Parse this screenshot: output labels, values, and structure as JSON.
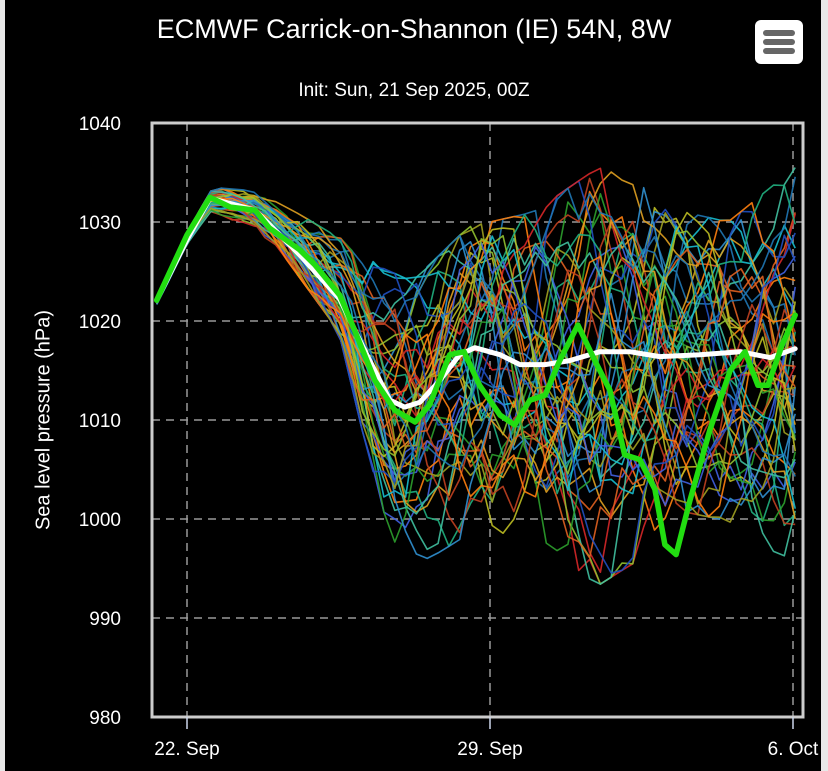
{
  "header": {
    "title": "ECMWF Carrick-on-Shannon (IE) 54N, 8W",
    "subtitle": "Init: Sun, 21 Sep 2025, 00Z",
    "menu_icon": "hamburger-menu-icon"
  },
  "colors": {
    "background": "#000000",
    "frame": "#cccccc",
    "grid": "#999999",
    "control": "#22dd11",
    "mean": "#ffffff",
    "members": [
      "#1f77b4",
      "#ff7f0e",
      "#2ca02c",
      "#d62728",
      "#17becf",
      "#bcbd22",
      "#e0a020",
      "#4060e0",
      "#20b080",
      "#c04020",
      "#3090d0",
      "#90c030",
      "#e06020",
      "#2050c0",
      "#40c0a0",
      "#a0a020"
    ]
  },
  "chart_data": {
    "type": "line",
    "title": "ECMWF Carrick-on-Shannon (IE) 54N, 8W",
    "subtitle": "Init: Sun, 21 Sep 2025, 00Z",
    "xlabel": "",
    "ylabel": "Sea level pressure (hPa)",
    "ylim": [
      980,
      1040
    ],
    "yticks": [
      980,
      990,
      1000,
      1010,
      1020,
      1030,
      1040
    ],
    "xlim_days_from_22sep": [
      -0.7,
      14.3
    ],
    "xticks": [
      {
        "label": "22. Sep",
        "day": 0
      },
      {
        "label": "29. Sep",
        "day": 7
      },
      {
        "label": "6. Oct",
        "day": 14
      }
    ],
    "grid": true,
    "x_unit": "days since 22 Sep 2025 00Z",
    "series": [
      {
        "name": "Control run",
        "style": "thick-green",
        "x": [
          -0.7,
          0,
          0.53,
          1.0,
          1.57,
          1.9,
          2.6,
          2.95,
          3.53,
          3.88,
          4.34,
          4.8,
          5.27,
          5.6,
          6.07,
          6.4,
          6.76,
          7.23,
          7.57,
          7.92,
          8.27,
          8.61,
          9.03,
          9.42,
          9.77,
          10.11,
          10.46,
          10.81,
          11.04,
          11.3,
          11.62,
          12.08,
          12.55,
          12.89,
          13.19,
          13.42,
          13.75,
          14.05
        ],
        "y": [
          1022.1,
          1028.7,
          1032.5,
          1031.5,
          1031.2,
          1029.4,
          1027.2,
          1025.7,
          1022.6,
          1019.0,
          1014.0,
          1011.0,
          1009.8,
          1011.5,
          1016.6,
          1016.9,
          1013.5,
          1010.5,
          1009.5,
          1012.0,
          1012.5,
          1016.0,
          1019.6,
          1016.0,
          1013.0,
          1006.5,
          1006.0,
          1003.0,
          997.4,
          996.4,
          1001.9,
          1009.0,
          1015.0,
          1016.9,
          1013.5,
          1013.5,
          1017.6,
          1020.6
        ]
      },
      {
        "name": "Ensemble mean",
        "style": "thick-white",
        "x": [
          -0.7,
          0,
          0.53,
          1.57,
          2.6,
          3.53,
          4.22,
          4.69,
          5.03,
          5.38,
          5.84,
          6.3,
          6.65,
          7.23,
          7.69,
          8.27,
          8.84,
          9.54,
          10.23,
          10.92,
          11.85,
          12.78,
          13.47,
          14.05
        ],
        "y": [
          1022.1,
          1028.2,
          1032.4,
          1031.2,
          1026.7,
          1022.2,
          1016.0,
          1012.0,
          1011.3,
          1011.8,
          1014.0,
          1016.6,
          1017.3,
          1016.6,
          1015.6,
          1015.6,
          1016.0,
          1016.9,
          1016.9,
          1016.4,
          1016.6,
          1016.9,
          1016.3,
          1017.2
        ]
      }
    ],
    "ensemble": {
      "name": "Ensemble members",
      "count": 50,
      "x_step_days": 0.25,
      "note": "spaghetti of perturbed members; spread grows from ~1 hPa at day 0 to ~±18 hPa after day 6",
      "envelope": {
        "day": [
          -0.7,
          0,
          0.6,
          2,
          3.5,
          4.7,
          5.2,
          6.5,
          8,
          9.5,
          10.5,
          11.5,
          12.5,
          14.05
        ],
        "min": [
          1021.5,
          1027.8,
          1031.0,
          1028.0,
          1019.0,
          997.0,
          993.0,
          994.0,
          997.0,
          989.5,
          993.0,
          999.0,
          997.0,
          993.0
        ],
        "max": [
          1022.4,
          1029.0,
          1033.5,
          1033.0,
          1030.0,
          1025.0,
          1024.0,
          1029.5,
          1031.0,
          1035.5,
          1034.0,
          1031.0,
          1030.0,
          1035.5
        ]
      }
    }
  }
}
